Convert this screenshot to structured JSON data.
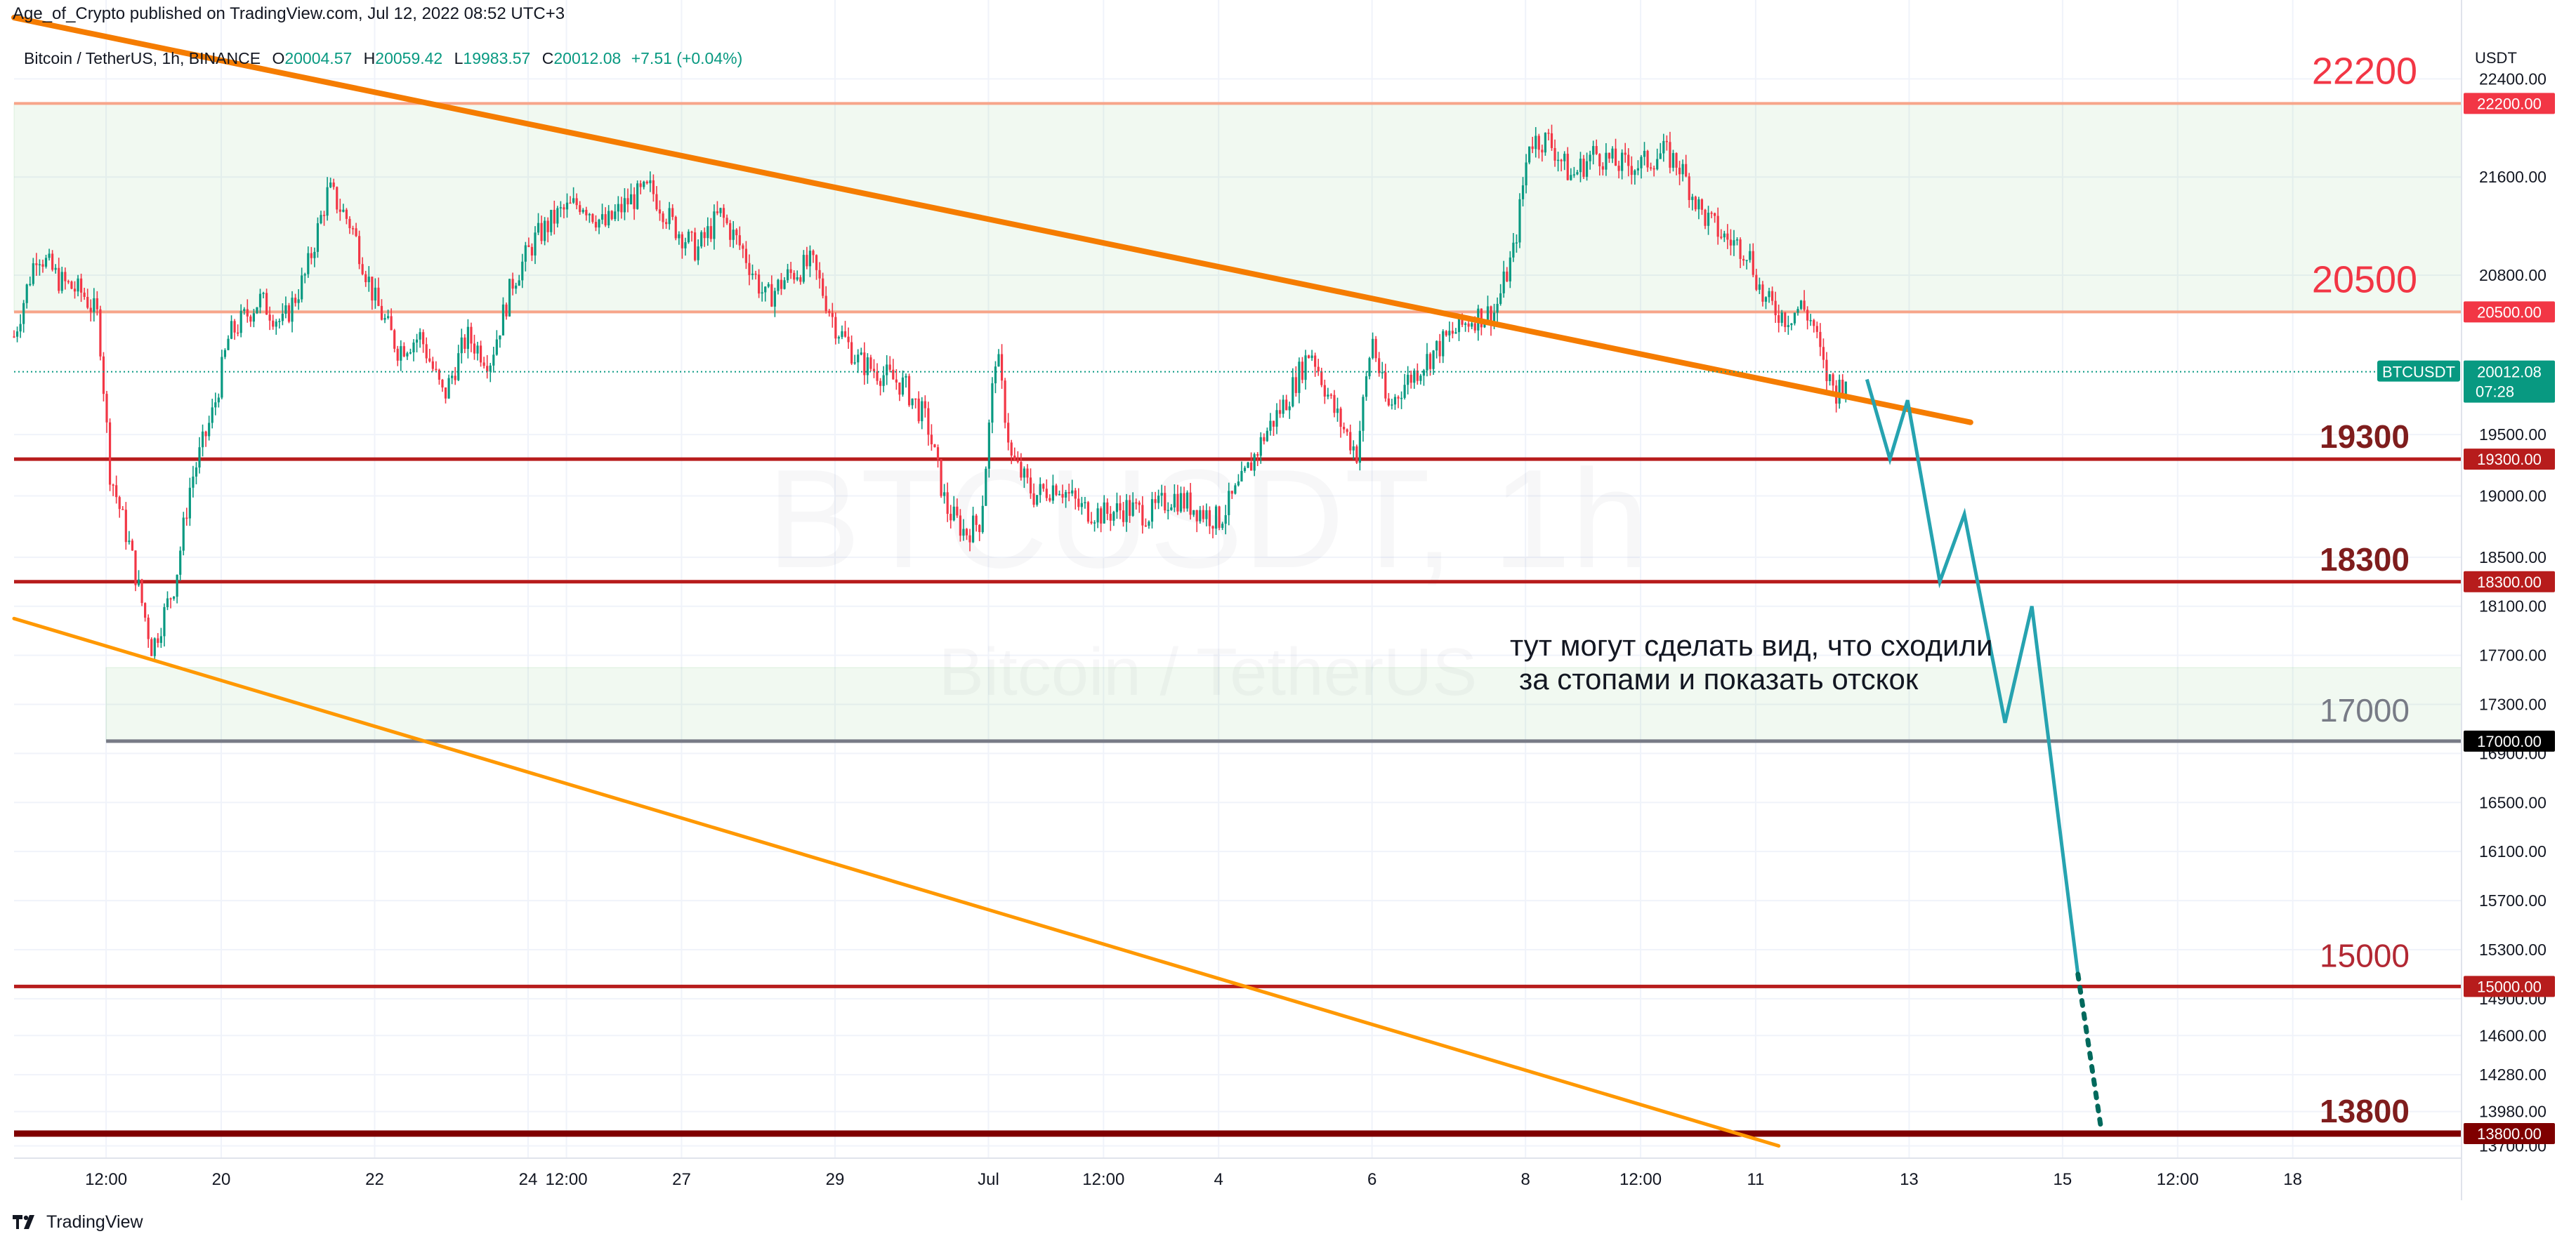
{
  "header": {
    "published_by": "Age_of_Crypto published on TradingView.com, Jul 12, 2022 08:52 UTC+3"
  },
  "symbol_bar": {
    "name": "Bitcoin / TetherUS, 1h, BINANCE",
    "o_label": "O",
    "o": "20004.57",
    "h_label": "H",
    "h": "20059.42",
    "l_label": "L",
    "l": "19983.57",
    "c_label": "C",
    "c": "20012.08",
    "change": "+7.51 (+0.04%)"
  },
  "watermark": {
    "line1": "BTCUSDT, 1h",
    "line2": "Bitcoin / TetherUS"
  },
  "footer": {
    "brand": "TradingView"
  },
  "colors": {
    "bg": "#ffffff",
    "up": "#089981",
    "down": "#f23645",
    "trend": "#f57c00",
    "trend_light": "#ff9800",
    "support": "#b71c1c",
    "projection": "#26a3b0",
    "dotted": "#00695c"
  },
  "chart_data": {
    "type": "candlestick",
    "currency_label": "USDT",
    "ylim": [
      13600,
      22700
    ],
    "y_ticks": [
      {
        "v": 22400,
        "label": "22400.00"
      },
      {
        "v": 21600,
        "label": "21600.00"
      },
      {
        "v": 20800,
        "label": "20800.00"
      },
      {
        "v": 19500,
        "label": "19500.00"
      },
      {
        "v": 19000,
        "label": "19000.00"
      },
      {
        "v": 18500,
        "label": "18500.00"
      },
      {
        "v": 18100,
        "label": "18100.00"
      },
      {
        "v": 17700,
        "label": "17700.00"
      },
      {
        "v": 17300,
        "label": "17300.00"
      },
      {
        "v": 16900,
        "label": "16900.00"
      },
      {
        "v": 16500,
        "label": "16500.00"
      },
      {
        "v": 16100,
        "label": "16100.00"
      },
      {
        "v": 15700,
        "label": "15700.00"
      },
      {
        "v": 15300,
        "label": "15300.00"
      },
      {
        "v": 14900,
        "label": "14900.00"
      },
      {
        "v": 14600,
        "label": "14600.00"
      },
      {
        "v": 14280,
        "label": "14280.00"
      },
      {
        "v": 13980,
        "label": "13980.00"
      },
      {
        "v": 13700,
        "label": "13700.00"
      }
    ],
    "x_range_days": [
      17.3,
      49.2
    ],
    "x_ticks": [
      {
        "t": 18.5,
        "label": "12:00"
      },
      {
        "t": 20,
        "label": "20"
      },
      {
        "t": 22,
        "label": "22"
      },
      {
        "t": 24,
        "label": "24"
      },
      {
        "t": 24.5,
        "label": "12:00"
      },
      {
        "t": 26,
        "label": "27"
      },
      {
        "t": 28,
        "label": "29"
      },
      {
        "t": 30,
        "label": "Jul"
      },
      {
        "t": 31.5,
        "label": "12:00"
      },
      {
        "t": 33,
        "label": "4"
      },
      {
        "t": 35,
        "label": "6"
      },
      {
        "t": 37,
        "label": "8"
      },
      {
        "t": 38.5,
        "label": "12:00"
      },
      {
        "t": 40,
        "label": "11"
      },
      {
        "t": 42,
        "label": "13"
      },
      {
        "t": 44,
        "label": "15"
      },
      {
        "t": 45.5,
        "label": "12:00"
      },
      {
        "t": 47,
        "label": "18"
      }
    ],
    "close_path": [
      [
        17.3,
        20300
      ],
      [
        17.6,
        21000
      ],
      [
        17.9,
        20750
      ],
      [
        18.2,
        20650
      ],
      [
        18.4,
        20450
      ],
      [
        18.55,
        19200
      ],
      [
        18.8,
        18600
      ],
      [
        19.1,
        17750
      ],
      [
        19.4,
        18300
      ],
      [
        19.6,
        19100
      ],
      [
        19.9,
        19700
      ],
      [
        20.1,
        20300
      ],
      [
        20.5,
        20600
      ],
      [
        20.8,
        20400
      ],
      [
        21.1,
        20800
      ],
      [
        21.4,
        21500
      ],
      [
        21.7,
        21200
      ],
      [
        22.0,
        20600
      ],
      [
        22.3,
        20200
      ],
      [
        22.6,
        20300
      ],
      [
        22.9,
        19800
      ],
      [
        23.2,
        20300
      ],
      [
        23.5,
        20100
      ],
      [
        23.8,
        20750
      ],
      [
        24.1,
        21100
      ],
      [
        24.4,
        21300
      ],
      [
        24.7,
        21400
      ],
      [
        25.0,
        21200
      ],
      [
        25.3,
        21400
      ],
      [
        25.6,
        21500
      ],
      [
        25.9,
        21200
      ],
      [
        26.2,
        21000
      ],
      [
        26.5,
        21300
      ],
      [
        26.8,
        21000
      ],
      [
        27.1,
        20600
      ],
      [
        27.4,
        20800
      ],
      [
        27.7,
        20900
      ],
      [
        28.0,
        20400
      ],
      [
        28.3,
        20100
      ],
      [
        28.6,
        20000
      ],
      [
        28.9,
        19900
      ],
      [
        29.2,
        19600
      ],
      [
        29.45,
        18900
      ],
      [
        29.7,
        18700
      ],
      [
        29.9,
        18800
      ],
      [
        30.1,
        20200
      ],
      [
        30.3,
        19300
      ],
      [
        30.6,
        19000
      ],
      [
        30.9,
        19100
      ],
      [
        31.2,
        18900
      ],
      [
        31.5,
        18850
      ],
      [
        31.8,
        18900
      ],
      [
        32.1,
        18850
      ],
      [
        32.4,
        19000
      ],
      [
        32.7,
        18900
      ],
      [
        33.0,
        18800
      ],
      [
        33.3,
        19100
      ],
      [
        33.6,
        19500
      ],
      [
        33.9,
        19800
      ],
      [
        34.2,
        20200
      ],
      [
        34.5,
        19700
      ],
      [
        34.8,
        19350
      ],
      [
        35.0,
        20300
      ],
      [
        35.2,
        19700
      ],
      [
        35.4,
        19900
      ],
      [
        35.7,
        20100
      ],
      [
        36.0,
        20300
      ],
      [
        36.3,
        20450
      ],
      [
        36.6,
        20500
      ],
      [
        36.85,
        21000
      ],
      [
        37.05,
        21900
      ],
      [
        37.3,
        21900
      ],
      [
        37.6,
        21600
      ],
      [
        37.9,
        21800
      ],
      [
        38.2,
        21700
      ],
      [
        38.5,
        21700
      ],
      [
        38.8,
        21800
      ],
      [
        39.0,
        21700
      ],
      [
        39.3,
        21300
      ],
      [
        39.6,
        21100
      ],
      [
        39.9,
        21000
      ],
      [
        40.1,
        20600
      ],
      [
        40.4,
        20450
      ],
      [
        40.6,
        20550
      ],
      [
        40.75,
        20400
      ],
      [
        40.9,
        20000
      ],
      [
        41.05,
        19850
      ],
      [
        41.2,
        20010
      ]
    ],
    "horizontal_levels": [
      {
        "price": 22200,
        "label": "22200",
        "axis_label": "22200.00",
        "style": "zone-edge"
      },
      {
        "price": 20500,
        "label": "20500",
        "axis_label": "20500.00",
        "style": "zone-edge"
      },
      {
        "price": 19300,
        "label": "19300",
        "axis_label": "19300.00",
        "style": "support"
      },
      {
        "price": 18300,
        "label": "18300",
        "axis_label": "18300.00",
        "style": "support"
      },
      {
        "price": 17000,
        "label": "17000",
        "axis_label": "17000.00",
        "style": "gray"
      },
      {
        "price": 15000,
        "label": "15000",
        "axis_label": "15000.00",
        "style": "support"
      },
      {
        "price": 13800,
        "label": "13800",
        "axis_label": "13800.00",
        "style": "support-dark"
      }
    ],
    "zones": [
      {
        "from": 20500,
        "to": 22200,
        "start_t": 17.3
      },
      {
        "from": 17000,
        "to": 17600,
        "start_t": 18.5
      }
    ],
    "trendlines": [
      {
        "name": "upper-resistance",
        "from": [
          17.3,
          22900
        ],
        "to": [
          42.8,
          19600
        ],
        "style": "thick"
      },
      {
        "name": "lower-trend",
        "from": [
          17.3,
          18000
        ],
        "to": [
          40.3,
          13700
        ],
        "style": "thin"
      }
    ],
    "projection_path": [
      [
        41.45,
        19950
      ],
      [
        41.75,
        19300
      ],
      [
        41.98,
        19780
      ],
      [
        42.4,
        18300
      ],
      [
        42.72,
        18850
      ],
      [
        43.25,
        17150
      ],
      [
        43.6,
        18100
      ],
      [
        44.2,
        15100
      ]
    ],
    "projection_dotted": [
      [
        44.2,
        15100
      ],
      [
        44.5,
        13850
      ]
    ],
    "current_price": {
      "symbol": "BTCUSDT",
      "price": "20012.08",
      "countdown": "07:28",
      "value": 20012.08
    },
    "annotation": {
      "line1": "тут могут сделать вид, что сходили",
      "line2": "за стопами и показать отскок"
    }
  }
}
